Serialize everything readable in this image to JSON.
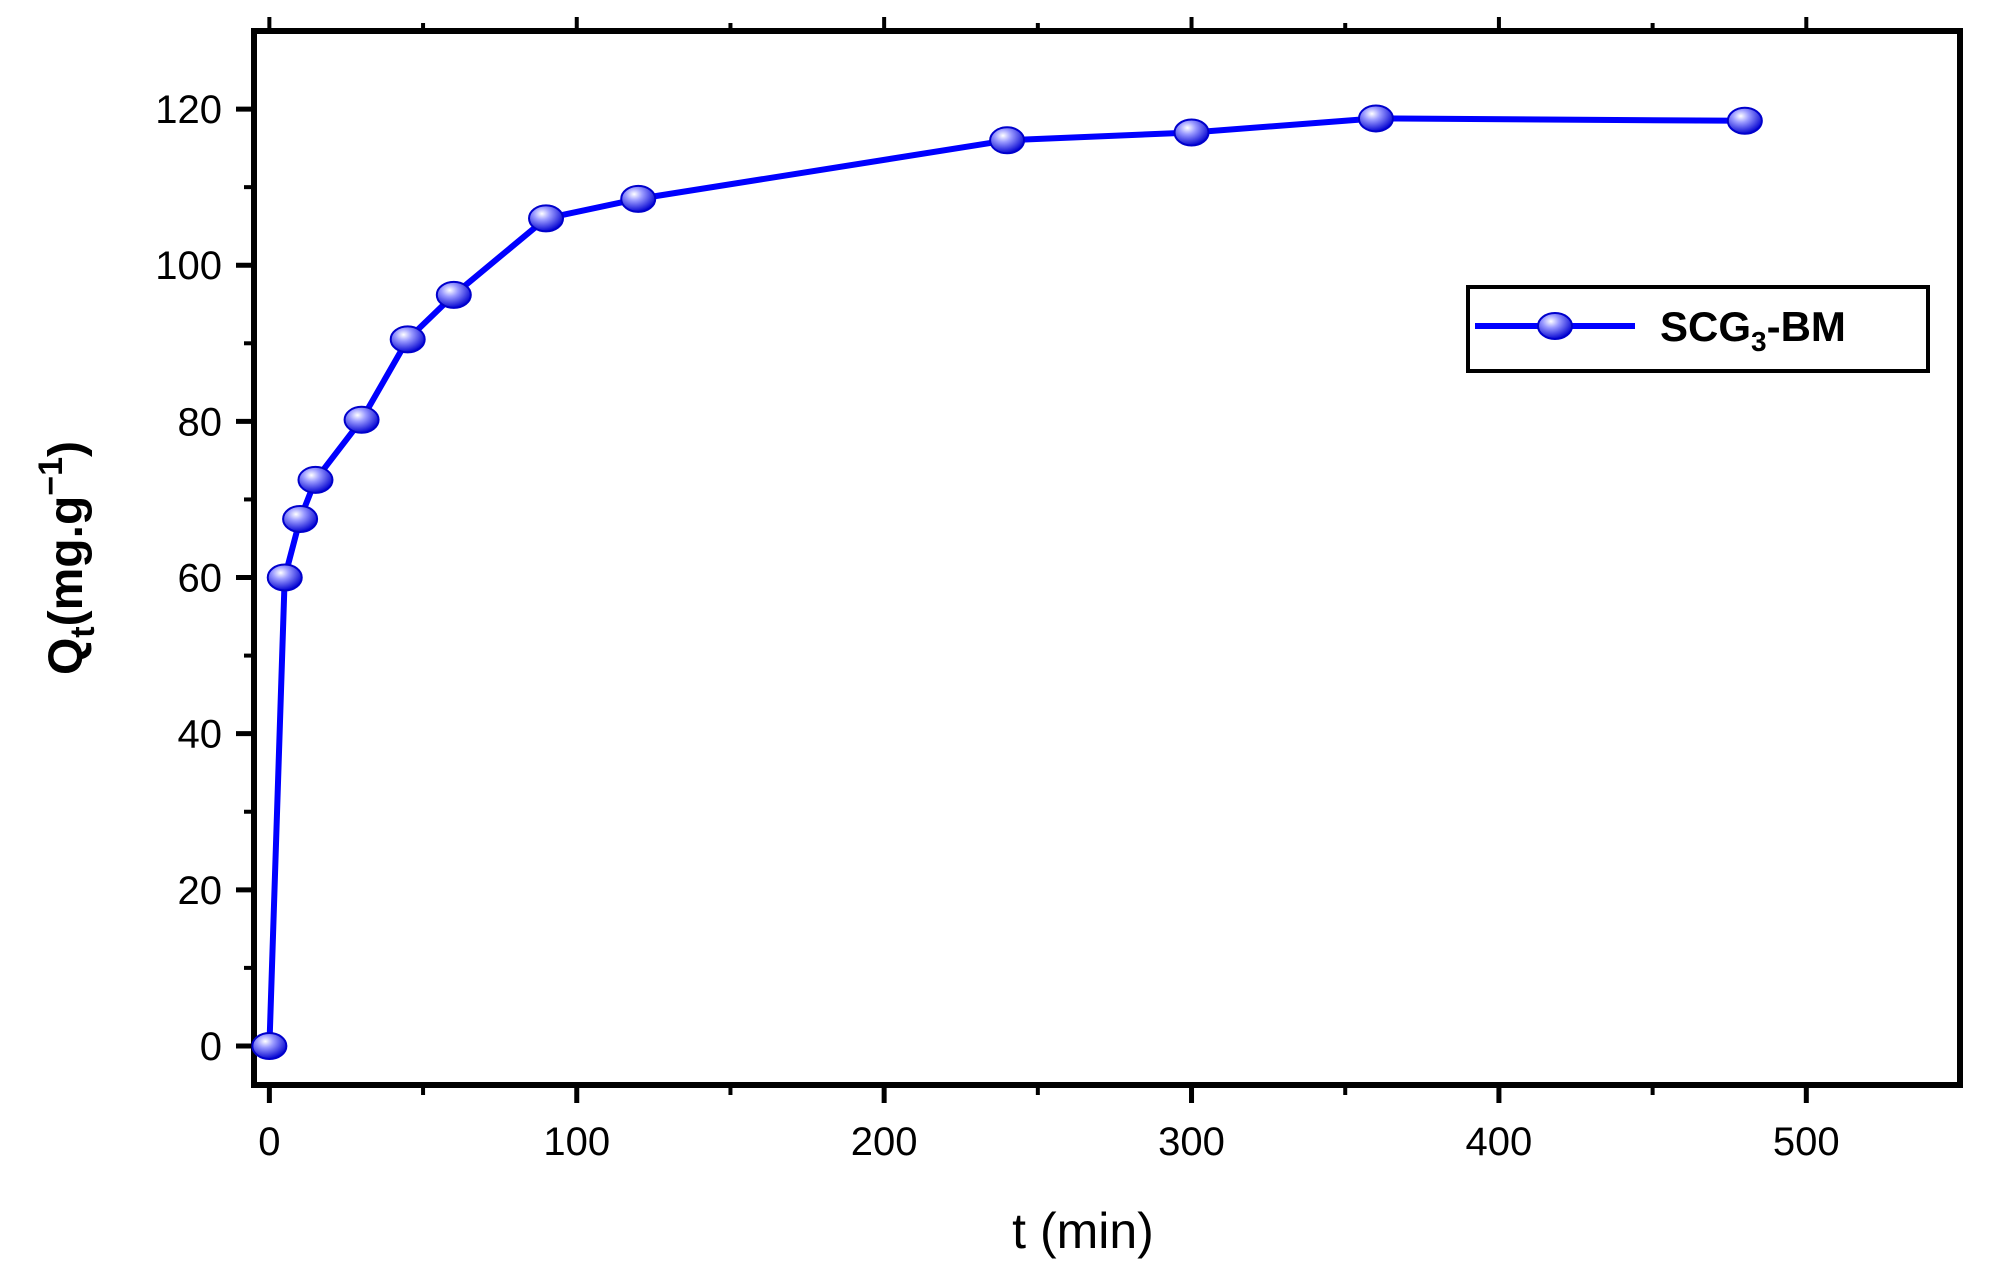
{
  "chart_data": {
    "type": "line",
    "x": [
      0,
      5,
      10,
      15,
      30,
      45,
      60,
      90,
      120,
      240,
      300,
      360,
      480
    ],
    "series": [
      {
        "name_main": "SCG",
        "name_sub": "3",
        "name_suffix": "-BM",
        "color": "#0000ff",
        "values": [
          0,
          60,
          67.5,
          72.5,
          80.2,
          90.5,
          96.2,
          106,
          108.5,
          116,
          117,
          118.8,
          118.5
        ]
      }
    ],
    "xlabel": "t (min)",
    "ylabel_main": "Q",
    "ylabel_sub": "t",
    "ylabel_unit": "(mg.g",
    "ylabel_sup": "−1",
    "ylabel_close": ")",
    "xlim": [
      -5,
      550
    ],
    "ylim": [
      -5,
      130
    ],
    "xticks": [
      0,
      100,
      200,
      300,
      400,
      500
    ],
    "yticks": [
      0,
      20,
      40,
      60,
      80,
      100,
      120
    ],
    "grid": false,
    "legend_position": "upper-right"
  }
}
